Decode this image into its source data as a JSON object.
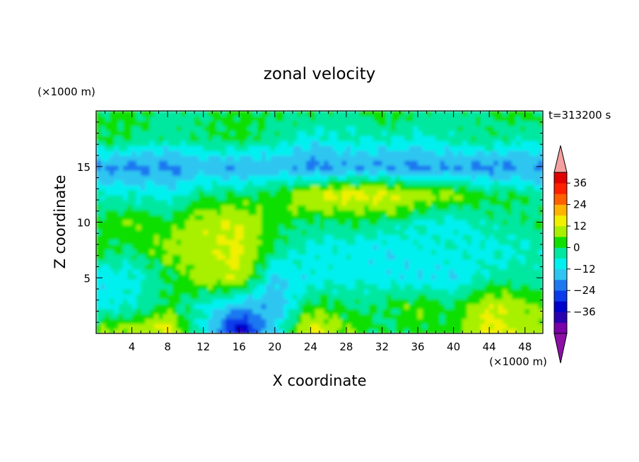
{
  "chart_data": {
    "type": "heatmap",
    "title": "zonal velocity",
    "xlabel": "X coordinate",
    "ylabel": "Z coordinate",
    "x_unit": "(×1000 m)",
    "z_unit": "(×1000 m)",
    "time_label": "t=313200 s",
    "xlim": [
      0,
      50
    ],
    "ylim": [
      0,
      20
    ],
    "x_ticks": [
      4,
      8,
      12,
      16,
      20,
      24,
      28,
      32,
      36,
      40,
      44,
      48
    ],
    "y_ticks": [
      5,
      10,
      15
    ],
    "colorbar": {
      "levels": [
        -36,
        -30,
        -24,
        -18,
        -12,
        -6,
        0,
        6,
        12,
        18,
        24,
        30,
        36
      ],
      "tick_labels": [
        "36",
        "24",
        "12",
        "0",
        "−12",
        "−24",
        "−36"
      ],
      "colors_low_to_high": [
        "#7a00a8",
        "#2a00b0",
        "#0000cc",
        "#0a3aea",
        "#1e78f0",
        "#2ec6f0",
        "#00f0f0",
        "#00e8a0",
        "#10e000",
        "#a8f000",
        "#f0f000",
        "#ffb400",
        "#ff6000",
        "#ff2000",
        "#e00000"
      ],
      "under_color": "#8c0fa6",
      "over_color": "#f4a0a0"
    },
    "field_samples": {
      "x": [
        0,
        4,
        8,
        12,
        16,
        20,
        24,
        28,
        32,
        36,
        40,
        44,
        48,
        50
      ],
      "z": [
        0.5,
        2.5,
        5,
        7.5,
        10,
        12.5,
        15,
        17.5,
        19.5
      ],
      "values": [
        [
          6,
          8,
          14,
          -4,
          -26,
          -6,
          14,
          6,
          2,
          4,
          4,
          14,
          10,
          8
        ],
        [
          -4,
          -2,
          4,
          -2,
          -10,
          -10,
          4,
          2,
          2,
          6,
          2,
          12,
          8,
          6
        ],
        [
          -6,
          -4,
          2,
          8,
          12,
          -8,
          -4,
          -4,
          -4,
          -6,
          -6,
          0,
          0,
          0
        ],
        [
          4,
          2,
          8,
          10,
          14,
          2,
          -4,
          -4,
          -6,
          -4,
          -2,
          -4,
          -2,
          0
        ],
        [
          4,
          6,
          4,
          10,
          12,
          4,
          2,
          2,
          2,
          -2,
          -4,
          0,
          2,
          2
        ],
        [
          -2,
          -2,
          -4,
          2,
          2,
          4,
          12,
          14,
          14,
          10,
          8,
          4,
          2,
          0
        ],
        [
          -12,
          -14,
          -14,
          -10,
          -12,
          -10,
          -14,
          -12,
          -12,
          -14,
          -12,
          -14,
          -12,
          -14
        ],
        [
          4,
          2,
          0,
          2,
          4,
          0,
          -4,
          -2,
          -2,
          -4,
          0,
          2,
          -2,
          0
        ],
        [
          2,
          4,
          0,
          2,
          4,
          2,
          2,
          0,
          4,
          2,
          0,
          2,
          4,
          2
        ]
      ]
    }
  }
}
